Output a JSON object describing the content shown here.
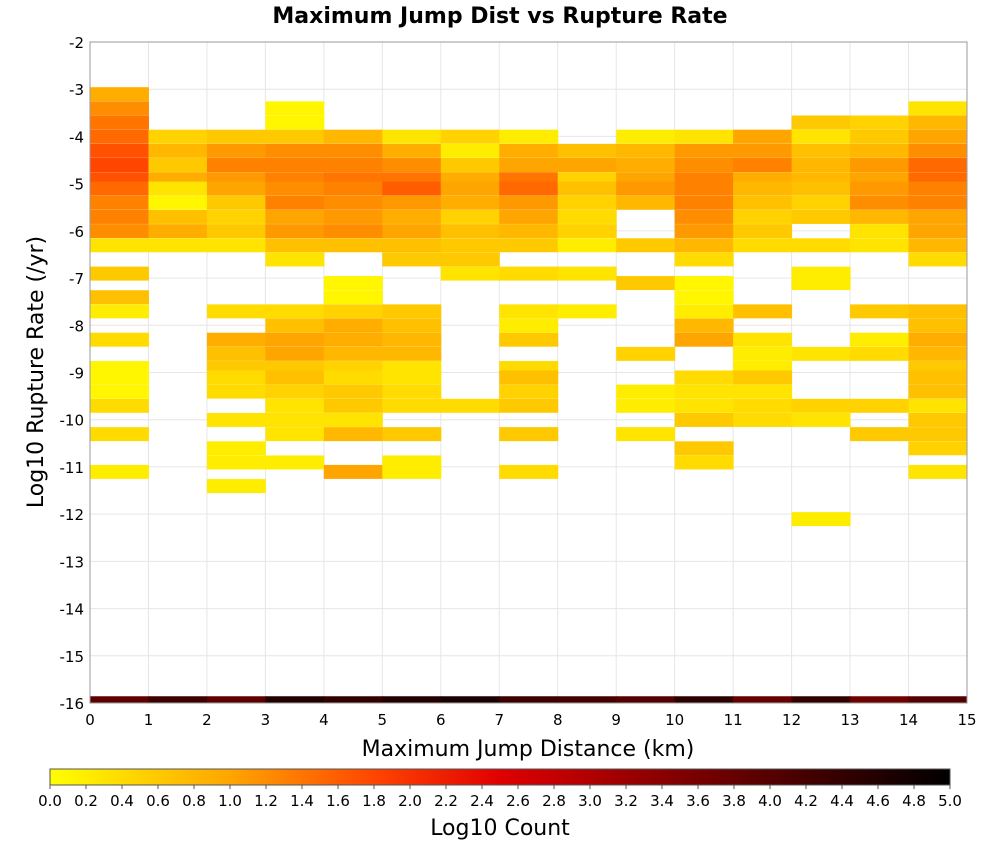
{
  "chart_data": {
    "type": "heatmap",
    "title": "Maximum Jump Dist vs Rupture Rate",
    "xlabel": "Maximum Jump Distance (km)",
    "ylabel": "Log10 Rupture Rate (/yr)",
    "xlim": [
      0,
      15
    ],
    "ylim": [
      -16,
      -2
    ],
    "x_ticks": [
      0,
      1,
      2,
      3,
      4,
      5,
      6,
      7,
      8,
      9,
      10,
      11,
      12,
      13,
      14,
      15
    ],
    "y_ticks": [
      -2,
      -3,
      -4,
      -5,
      -6,
      -7,
      -8,
      -9,
      -10,
      -11,
      -12,
      -13,
      -14,
      -15,
      -16
    ],
    "x_bin_width": 1,
    "y_bin_height": 0.2857,
    "grid": true,
    "colorbar": {
      "label": "Log10 Count",
      "min": 0.0,
      "max": 5.0,
      "ticks": [
        0.0,
        0.2,
        0.4,
        0.6,
        0.8,
        1.0,
        1.2,
        1.4,
        1.6,
        1.8,
        2.0,
        2.2,
        2.4,
        2.6,
        2.8,
        3.0,
        3.2,
        3.4,
        3.6,
        3.8,
        4.0,
        4.2,
        4.4,
        4.6,
        4.8,
        5.0
      ],
      "tick_labels": [
        "0.0",
        "0.2",
        "0.4",
        "0.6",
        "0.8",
        "1.0",
        "1.2",
        "1.4",
        "1.6",
        "1.8",
        "2.0",
        "2.2",
        "2.4",
        "2.6",
        "2.8",
        "3.0",
        "3.2",
        "3.4",
        "3.6",
        "3.8",
        "4.0",
        "4.2",
        "4.4",
        "4.6",
        "4.8",
        "5.0"
      ],
      "colors": [
        "#ffff00",
        "#ffa500",
        "#ff4500",
        "#e00000",
        "#800000",
        "#000000"
      ]
    },
    "cells": [
      [
        0,
        -3.1,
        0.9
      ],
      [
        0,
        -3.4,
        1.2
      ],
      [
        0,
        -3.7,
        1.4
      ],
      [
        0,
        -4.0,
        1.5
      ],
      [
        0,
        -4.3,
        1.7
      ],
      [
        0,
        -4.6,
        1.8
      ],
      [
        0,
        -4.9,
        1.7
      ],
      [
        0,
        -5.1,
        1.5
      ],
      [
        0,
        -5.4,
        1.3
      ],
      [
        0,
        -5.7,
        1.3
      ],
      [
        0,
        -6.0,
        1.2
      ],
      [
        0,
        -6.3,
        0.3
      ],
      [
        0,
        -6.9,
        0.6
      ],
      [
        0,
        -7.4,
        0.7
      ],
      [
        0,
        -7.7,
        0.2
      ],
      [
        0,
        -8.3,
        0.4
      ],
      [
        0,
        -8.9,
        0.1
      ],
      [
        0,
        -9.1,
        0.1
      ],
      [
        0,
        -9.4,
        0.1
      ],
      [
        0,
        -9.7,
        0.4
      ],
      [
        0,
        -10.3,
        0.4
      ],
      [
        0,
        -11.1,
        0.2
      ],
      [
        1,
        -4.0,
        0.5
      ],
      [
        1,
        -4.3,
        0.8
      ],
      [
        1,
        -4.6,
        0.6
      ],
      [
        1,
        -4.9,
        0.9
      ],
      [
        1,
        -5.1,
        0.3
      ],
      [
        1,
        -5.4,
        0.1
      ],
      [
        1,
        -5.7,
        0.7
      ],
      [
        1,
        -6.0,
        0.9
      ],
      [
        1,
        -6.3,
        0.3
      ],
      [
        2,
        -4.0,
        0.6
      ],
      [
        2,
        -4.3,
        1.1
      ],
      [
        2,
        -4.6,
        1.3
      ],
      [
        2,
        -4.9,
        1.1
      ],
      [
        2,
        -5.1,
        1.0
      ],
      [
        2,
        -5.4,
        0.6
      ],
      [
        2,
        -5.7,
        0.5
      ],
      [
        2,
        -6.0,
        0.6
      ],
      [
        2,
        -6.3,
        0.3
      ],
      [
        2,
        -7.7,
        0.4
      ],
      [
        2,
        -8.3,
        0.9
      ],
      [
        2,
        -8.6,
        0.7
      ],
      [
        2,
        -8.9,
        0.6
      ],
      [
        2,
        -9.1,
        0.4
      ],
      [
        2,
        -9.4,
        0.4
      ],
      [
        2,
        -10.0,
        0.3
      ],
      [
        2,
        -10.6,
        0.2
      ],
      [
        2,
        -10.9,
        0.2
      ],
      [
        2,
        -11.4,
        0.2
      ],
      [
        3,
        -3.4,
        0.1
      ],
      [
        3,
        -3.7,
        0.1
      ],
      [
        3,
        -4.0,
        0.6
      ],
      [
        3,
        -4.3,
        1.2
      ],
      [
        3,
        -4.6,
        1.3
      ],
      [
        3,
        -4.9,
        1.3
      ],
      [
        3,
        -5.1,
        1.2
      ],
      [
        3,
        -5.4,
        1.3
      ],
      [
        3,
        -5.7,
        1.0
      ],
      [
        3,
        -6.0,
        1.1
      ],
      [
        3,
        -6.3,
        0.7
      ],
      [
        3,
        -6.6,
        0.3
      ],
      [
        3,
        -7.7,
        0.4
      ],
      [
        3,
        -8.0,
        0.7
      ],
      [
        3,
        -8.3,
        1.0
      ],
      [
        3,
        -8.6,
        1.0
      ],
      [
        3,
        -8.9,
        0.6
      ],
      [
        3,
        -9.1,
        0.7
      ],
      [
        3,
        -9.4,
        0.5
      ],
      [
        3,
        -9.7,
        0.3
      ],
      [
        3,
        -10.0,
        0.3
      ],
      [
        3,
        -10.3,
        0.3
      ],
      [
        3,
        -10.9,
        0.2
      ],
      [
        4,
        -4.0,
        0.8
      ],
      [
        4,
        -4.3,
        1.2
      ],
      [
        4,
        -4.6,
        1.3
      ],
      [
        4,
        -4.9,
        1.4
      ],
      [
        4,
        -5.1,
        1.3
      ],
      [
        4,
        -5.4,
        1.2
      ],
      [
        4,
        -5.7,
        1.1
      ],
      [
        4,
        -6.0,
        1.2
      ],
      [
        4,
        -6.3,
        0.7
      ],
      [
        4,
        -7.1,
        0.1
      ],
      [
        4,
        -7.4,
        0.1
      ],
      [
        4,
        -7.7,
        0.5
      ],
      [
        4,
        -8.0,
        0.9
      ],
      [
        4,
        -8.3,
        0.9
      ],
      [
        4,
        -8.6,
        0.8
      ],
      [
        4,
        -8.9,
        0.5
      ],
      [
        4,
        -9.1,
        0.4
      ],
      [
        4,
        -9.4,
        0.6
      ],
      [
        4,
        -9.7,
        0.6
      ],
      [
        4,
        -10.0,
        0.3
      ],
      [
        4,
        -10.3,
        0.8
      ],
      [
        4,
        -11.1,
        1.0
      ],
      [
        5,
        -4.0,
        0.3
      ],
      [
        5,
        -4.3,
        0.9
      ],
      [
        5,
        -4.6,
        1.2
      ],
      [
        5,
        -4.9,
        1.4
      ],
      [
        5,
        -5.1,
        1.6
      ],
      [
        5,
        -5.4,
        1.1
      ],
      [
        5,
        -5.7,
        0.9
      ],
      [
        5,
        -6.0,
        1.0
      ],
      [
        5,
        -6.3,
        0.7
      ],
      [
        5,
        -6.6,
        0.6
      ],
      [
        5,
        -7.7,
        0.6
      ],
      [
        5,
        -8.0,
        0.7
      ],
      [
        5,
        -8.3,
        0.8
      ],
      [
        5,
        -8.6,
        0.8
      ],
      [
        5,
        -8.9,
        0.3
      ],
      [
        5,
        -9.1,
        0.3
      ],
      [
        5,
        -9.4,
        0.4
      ],
      [
        5,
        -9.7,
        0.4
      ],
      [
        5,
        -10.3,
        0.6
      ],
      [
        5,
        -10.9,
        0.2
      ],
      [
        5,
        -11.1,
        0.2
      ],
      [
        6,
        -4.0,
        0.5
      ],
      [
        6,
        -4.3,
        0.2
      ],
      [
        6,
        -4.6,
        0.6
      ],
      [
        6,
        -4.9,
        0.9
      ],
      [
        6,
        -5.1,
        1.0
      ],
      [
        6,
        -5.4,
        0.9
      ],
      [
        6,
        -5.7,
        0.5
      ],
      [
        6,
        -6.0,
        0.7
      ],
      [
        6,
        -6.3,
        0.6
      ],
      [
        6,
        -6.6,
        0.6
      ],
      [
        6,
        -6.9,
        0.3
      ],
      [
        6,
        -9.7,
        0.4
      ],
      [
        7,
        -4.0,
        0.2
      ],
      [
        7,
        -4.3,
        0.9
      ],
      [
        7,
        -4.6,
        1.0
      ],
      [
        7,
        -4.9,
        1.4
      ],
      [
        7,
        -5.1,
        1.5
      ],
      [
        7,
        -5.4,
        1.1
      ],
      [
        7,
        -5.7,
        1.0
      ],
      [
        7,
        -6.0,
        0.8
      ],
      [
        7,
        -6.3,
        0.6
      ],
      [
        7,
        -6.9,
        0.4
      ],
      [
        7,
        -7.7,
        0.3
      ],
      [
        7,
        -8.0,
        0.2
      ],
      [
        7,
        -8.3,
        0.6
      ],
      [
        7,
        -8.9,
        0.4
      ],
      [
        7,
        -9.1,
        0.7
      ],
      [
        7,
        -9.4,
        0.5
      ],
      [
        7,
        -9.7,
        0.6
      ],
      [
        7,
        -10.3,
        0.6
      ],
      [
        7,
        -11.1,
        0.4
      ],
      [
        8,
        -4.3,
        0.7
      ],
      [
        8,
        -4.6,
        1.0
      ],
      [
        8,
        -4.9,
        0.5
      ],
      [
        8,
        -5.1,
        0.7
      ],
      [
        8,
        -5.4,
        0.5
      ],
      [
        8,
        -5.7,
        0.4
      ],
      [
        8,
        -6.0,
        0.5
      ],
      [
        8,
        -6.3,
        0.2
      ],
      [
        8,
        -6.9,
        0.3
      ],
      [
        8,
        -7.7,
        0.2
      ],
      [
        9,
        -4.0,
        0.2
      ],
      [
        9,
        -4.3,
        0.8
      ],
      [
        9,
        -4.6,
        0.9
      ],
      [
        9,
        -4.9,
        1.0
      ],
      [
        9,
        -5.1,
        1.1
      ],
      [
        9,
        -5.4,
        0.8
      ],
      [
        9,
        -6.3,
        0.6
      ],
      [
        9,
        -7.1,
        0.6
      ],
      [
        9,
        -8.6,
        0.5
      ],
      [
        9,
        -9.4,
        0.2
      ],
      [
        9,
        -9.7,
        0.2
      ],
      [
        9,
        -10.3,
        0.3
      ],
      [
        10,
        -4.0,
        0.3
      ],
      [
        10,
        -4.3,
        1.1
      ],
      [
        10,
        -4.6,
        1.2
      ],
      [
        10,
        -4.9,
        1.3
      ],
      [
        10,
        -5.1,
        1.3
      ],
      [
        10,
        -5.4,
        1.3
      ],
      [
        10,
        -5.7,
        1.2
      ],
      [
        10,
        -6.0,
        1.1
      ],
      [
        10,
        -6.3,
        0.8
      ],
      [
        10,
        -6.6,
        0.4
      ],
      [
        10,
        -7.1,
        0.1
      ],
      [
        10,
        -7.4,
        0.1
      ],
      [
        10,
        -7.7,
        0.2
      ],
      [
        10,
        -8.0,
        0.8
      ],
      [
        10,
        -8.3,
        1.0
      ],
      [
        10,
        -9.1,
        0.4
      ],
      [
        10,
        -9.4,
        0.3
      ],
      [
        10,
        -9.7,
        0.3
      ],
      [
        10,
        -10.0,
        0.6
      ],
      [
        10,
        -10.6,
        0.6
      ],
      [
        10,
        -10.9,
        0.4
      ],
      [
        11,
        -4.0,
        1.0
      ],
      [
        11,
        -4.3,
        1.1
      ],
      [
        11,
        -4.6,
        1.3
      ],
      [
        11,
        -4.9,
        0.9
      ],
      [
        11,
        -5.1,
        0.8
      ],
      [
        11,
        -5.4,
        0.7
      ],
      [
        11,
        -5.7,
        0.5
      ],
      [
        11,
        -6.0,
        0.6
      ],
      [
        11,
        -6.3,
        0.4
      ],
      [
        11,
        -7.7,
        0.7
      ],
      [
        11,
        -8.3,
        0.3
      ],
      [
        11,
        -8.6,
        0.2
      ],
      [
        11,
        -8.9,
        0.2
      ],
      [
        11,
        -9.1,
        0.6
      ],
      [
        11,
        -9.4,
        0.3
      ],
      [
        11,
        -9.7,
        0.4
      ],
      [
        11,
        -10.0,
        0.4
      ],
      [
        12,
        -3.7,
        0.6
      ],
      [
        12,
        -4.0,
        0.3
      ],
      [
        12,
        -4.3,
        0.7
      ],
      [
        12,
        -4.6,
        0.8
      ],
      [
        12,
        -4.9,
        0.8
      ],
      [
        12,
        -5.1,
        0.7
      ],
      [
        12,
        -5.4,
        0.5
      ],
      [
        12,
        -5.7,
        0.6
      ],
      [
        12,
        -6.3,
        0.4
      ],
      [
        12,
        -6.9,
        0.2
      ],
      [
        12,
        -7.1,
        0.2
      ],
      [
        12,
        -8.6,
        0.3
      ],
      [
        12,
        -9.7,
        0.5
      ],
      [
        12,
        -10.0,
        0.3
      ],
      [
        12,
        -12.1,
        0.2
      ],
      [
        13,
        -3.7,
        0.5
      ],
      [
        13,
        -4.0,
        0.6
      ],
      [
        13,
        -4.3,
        0.8
      ],
      [
        13,
        -4.6,
        1.1
      ],
      [
        13,
        -4.9,
        1.0
      ],
      [
        13,
        -5.1,
        1.1
      ],
      [
        13,
        -5.4,
        1.2
      ],
      [
        13,
        -5.7,
        0.8
      ],
      [
        13,
        -6.0,
        0.3
      ],
      [
        13,
        -6.3,
        0.3
      ],
      [
        13,
        -7.7,
        0.6
      ],
      [
        13,
        -8.3,
        0.2
      ],
      [
        13,
        -8.6,
        0.4
      ],
      [
        13,
        -9.7,
        0.5
      ],
      [
        13,
        -10.3,
        0.6
      ],
      [
        14,
        -3.4,
        0.3
      ],
      [
        14,
        -3.7,
        0.8
      ],
      [
        14,
        -4.0,
        1.0
      ],
      [
        14,
        -4.3,
        1.2
      ],
      [
        14,
        -4.6,
        1.5
      ],
      [
        14,
        -4.9,
        1.5
      ],
      [
        14,
        -5.1,
        1.3
      ],
      [
        14,
        -5.4,
        1.3
      ],
      [
        14,
        -5.7,
        1.0
      ],
      [
        14,
        -6.0,
        1.0
      ],
      [
        14,
        -6.3,
        0.8
      ],
      [
        14,
        -6.6,
        0.4
      ],
      [
        14,
        -7.7,
        0.7
      ],
      [
        14,
        -8.0,
        0.7
      ],
      [
        14,
        -8.3,
        0.9
      ],
      [
        14,
        -8.6,
        0.8
      ],
      [
        14,
        -8.9,
        0.6
      ],
      [
        14,
        -9.1,
        0.7
      ],
      [
        14,
        -9.4,
        0.7
      ],
      [
        14,
        -9.7,
        0.3
      ],
      [
        14,
        -10.0,
        0.6
      ],
      [
        14,
        -10.3,
        0.6
      ],
      [
        14,
        -10.6,
        0.5
      ],
      [
        14,
        -11.1,
        0.3
      ]
    ],
    "bottom_row": {
      "y": -16,
      "values": [
        3.9,
        4.3,
        3.9,
        4.6,
        4.4,
        4.6,
        4.7,
        4.3,
        4.2,
        4.0,
        4.5,
        3.8,
        4.4,
        3.7,
        4.0
      ]
    }
  }
}
